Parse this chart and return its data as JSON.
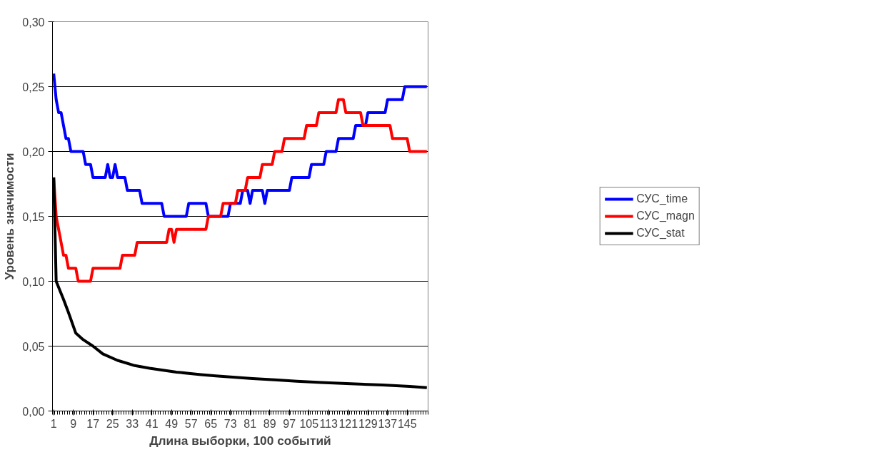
{
  "chart_data": {
    "type": "line",
    "xlabel": "Длина выборки, 100 событий",
    "ylabel": "Уровень значимости",
    "xlim": [
      0.5,
      153.5
    ],
    "xticks": [
      1,
      9,
      17,
      25,
      33,
      41,
      49,
      57,
      65,
      73,
      81,
      89,
      97,
      105,
      113,
      121,
      129,
      137,
      145
    ],
    "ylim": [
      0,
      0.3
    ],
    "yticks": [
      {
        "value": 0,
        "label": "0,00"
      },
      {
        "value": 0.05,
        "label": "0,05"
      },
      {
        "value": 0.1,
        "label": "0,10"
      },
      {
        "value": 0.15,
        "label": "0,15"
      },
      {
        "value": 0.2,
        "label": "0,20"
      },
      {
        "value": 0.25,
        "label": "0,25"
      },
      {
        "value": 0.3,
        "label": "0,30"
      }
    ],
    "grid": "y",
    "legend": "right",
    "marker": "none",
    "line_style": "solid",
    "series": [
      {
        "name": "СУС_time",
        "color": "#0000ff",
        "x": [
          1,
          2,
          3,
          4,
          5,
          6,
          7,
          8,
          13,
          14,
          16,
          17,
          22,
          23,
          24,
          25,
          26,
          27,
          30,
          31,
          36,
          37,
          45,
          46,
          55,
          56,
          63,
          64,
          72,
          73,
          77,
          78,
          80,
          81,
          82,
          86,
          87,
          88,
          97,
          98,
          105,
          106,
          111,
          112,
          116,
          117,
          123,
          124,
          128,
          129,
          136,
          137,
          143,
          144,
          153
        ],
        "values": [
          0.26,
          0.24,
          0.23,
          0.23,
          0.22,
          0.21,
          0.21,
          0.2,
          0.2,
          0.19,
          0.19,
          0.18,
          0.18,
          0.19,
          0.18,
          0.18,
          0.19,
          0.18,
          0.18,
          0.17,
          0.17,
          0.16,
          0.16,
          0.15,
          0.15,
          0.16,
          0.16,
          0.15,
          0.15,
          0.16,
          0.16,
          0.17,
          0.17,
          0.16,
          0.17,
          0.17,
          0.16,
          0.17,
          0.17,
          0.18,
          0.18,
          0.19,
          0.19,
          0.2,
          0.2,
          0.21,
          0.21,
          0.22,
          0.22,
          0.23,
          0.23,
          0.24,
          0.24,
          0.25,
          0.25
        ]
      },
      {
        "name": "СУС_magn",
        "color": "#ff0000",
        "x": [
          1,
          2,
          3,
          4,
          5,
          6,
          7,
          10,
          11,
          16,
          17,
          28,
          29,
          34,
          35,
          47,
          48,
          49,
          50,
          51,
          63,
          64,
          69,
          70,
          75,
          76,
          79,
          80,
          85,
          86,
          90,
          91,
          94,
          95,
          103,
          104,
          108,
          109,
          116,
          117,
          119,
          120,
          126,
          127,
          138,
          139,
          145,
          146,
          153
        ],
        "values": [
          0.18,
          0.15,
          0.14,
          0.13,
          0.12,
          0.12,
          0.11,
          0.11,
          0.1,
          0.1,
          0.11,
          0.11,
          0.12,
          0.12,
          0.13,
          0.13,
          0.14,
          0.14,
          0.13,
          0.14,
          0.14,
          0.15,
          0.15,
          0.16,
          0.16,
          0.17,
          0.17,
          0.18,
          0.18,
          0.19,
          0.19,
          0.2,
          0.2,
          0.21,
          0.21,
          0.22,
          0.22,
          0.23,
          0.23,
          0.24,
          0.24,
          0.23,
          0.23,
          0.22,
          0.22,
          0.21,
          0.21,
          0.2,
          0.2
        ]
      },
      {
        "name": "СУС_stat",
        "color": "#000000",
        "x": [
          1,
          2,
          5,
          7,
          10,
          13,
          17,
          21,
          27,
          34,
          40,
          51,
          56,
          61,
          67,
          75,
          82,
          91,
          100,
          110,
          122,
          135,
          146,
          153
        ],
        "values": [
          0.18,
          0.1,
          0.086,
          0.076,
          0.06,
          0.055,
          0.05,
          0.044,
          0.039,
          0.035,
          0.033,
          0.03,
          0.029,
          0.028,
          0.027,
          0.026,
          0.025,
          0.024,
          0.023,
          0.022,
          0.021,
          0.02,
          0.019,
          0.018
        ]
      }
    ]
  }
}
